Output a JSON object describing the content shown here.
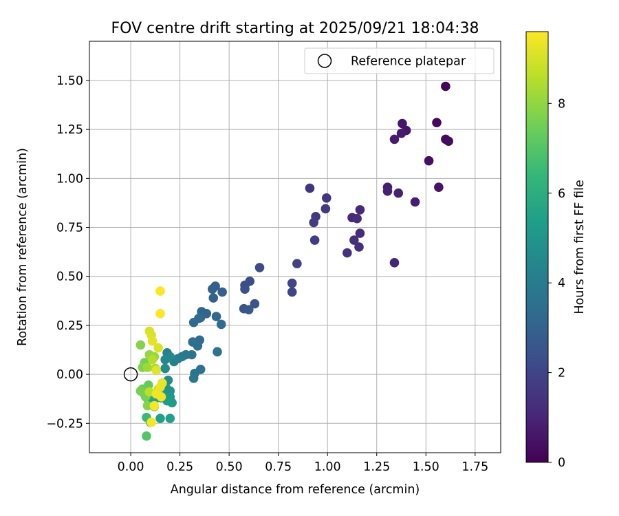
{
  "chart_data": {
    "type": "scatter",
    "title": "FOV centre drift starting at 2025/09/21 18:04:38",
    "xlabel": "Angular distance from reference (arcmin)",
    "ylabel": "Rotation from reference (arcmin)",
    "xlim": [
      -0.21,
      1.88
    ],
    "ylim": [
      -0.4,
      1.7
    ],
    "grid": true,
    "x_ticks": [
      0.0,
      0.25,
      0.5,
      0.75,
      1.0,
      1.25,
      1.5,
      1.75
    ],
    "x_tick_labels": [
      "0.00",
      "0.25",
      "0.50",
      "0.75",
      "1.00",
      "1.25",
      "1.50",
      "1.75"
    ],
    "y_ticks": [
      -0.25,
      0.0,
      0.25,
      0.5,
      0.75,
      1.0,
      1.25,
      1.5
    ],
    "y_tick_labels": [
      "−0.25",
      "0.00",
      "0.25",
      "0.50",
      "0.75",
      "1.00",
      "1.25",
      "1.50"
    ],
    "legend": {
      "label": "Reference platepar",
      "placement": "top-right"
    },
    "reference_point": {
      "x": 0.0,
      "y": 0.0
    },
    "colorbar": {
      "label": "Hours from first FF file",
      "min": 0,
      "max": 9.6,
      "ticks": [
        0,
        2,
        4,
        6,
        8
      ],
      "tick_labels": [
        "0",
        "2",
        "4",
        "6",
        "8"
      ],
      "colormap": [
        "#440154",
        "#482878",
        "#3e4989",
        "#31688e",
        "#26828e",
        "#1f9e89",
        "#35b779",
        "#6ece58",
        "#b5de2b",
        "#fde725"
      ]
    },
    "series": [
      {
        "name": "FOV centre",
        "points": [
          {
            "x": 1.6,
            "y": 1.47,
            "h": 0.1
          },
          {
            "x": 1.555,
            "y": 1.285,
            "h": 0.2
          },
          {
            "x": 1.6,
            "y": 1.2,
            "h": 0.3
          },
          {
            "x": 1.615,
            "y": 1.19,
            "h": 0.3
          },
          {
            "x": 1.515,
            "y": 1.09,
            "h": 0.4
          },
          {
            "x": 1.565,
            "y": 0.955,
            "h": 0.5
          },
          {
            "x": 1.38,
            "y": 1.28,
            "h": 0.6
          },
          {
            "x": 1.4,
            "y": 1.245,
            "h": 0.6
          },
          {
            "x": 1.375,
            "y": 1.23,
            "h": 0.7
          },
          {
            "x": 1.34,
            "y": 1.2,
            "h": 0.7
          },
          {
            "x": 1.445,
            "y": 0.88,
            "h": 0.8
          },
          {
            "x": 1.305,
            "y": 0.955,
            "h": 0.8
          },
          {
            "x": 1.305,
            "y": 0.935,
            "h": 0.9
          },
          {
            "x": 1.36,
            "y": 0.925,
            "h": 0.9
          },
          {
            "x": 1.34,
            "y": 0.57,
            "h": 1.0
          },
          {
            "x": 1.165,
            "y": 0.84,
            "h": 1.1
          },
          {
            "x": 1.125,
            "y": 0.8,
            "h": 1.1
          },
          {
            "x": 1.15,
            "y": 0.795,
            "h": 1.2
          },
          {
            "x": 1.165,
            "y": 0.72,
            "h": 1.2
          },
          {
            "x": 1.135,
            "y": 0.685,
            "h": 1.3
          },
          {
            "x": 1.16,
            "y": 0.65,
            "h": 1.3
          },
          {
            "x": 1.1,
            "y": 0.62,
            "h": 1.4
          },
          {
            "x": 0.995,
            "y": 0.9,
            "h": 1.5
          },
          {
            "x": 0.91,
            "y": 0.95,
            "h": 1.5
          },
          {
            "x": 0.99,
            "y": 0.845,
            "h": 1.6
          },
          {
            "x": 0.94,
            "y": 0.805,
            "h": 1.6
          },
          {
            "x": 0.93,
            "y": 0.775,
            "h": 1.7
          },
          {
            "x": 0.935,
            "y": 0.685,
            "h": 1.7
          },
          {
            "x": 0.845,
            "y": 0.565,
            "h": 1.9
          },
          {
            "x": 0.82,
            "y": 0.465,
            "h": 2.0
          },
          {
            "x": 0.82,
            "y": 0.42,
            "h": 2.0
          },
          {
            "x": 0.655,
            "y": 0.545,
            "h": 2.2
          },
          {
            "x": 0.605,
            "y": 0.475,
            "h": 2.3
          },
          {
            "x": 0.58,
            "y": 0.455,
            "h": 2.3
          },
          {
            "x": 0.58,
            "y": 0.435,
            "h": 2.4
          },
          {
            "x": 0.63,
            "y": 0.36,
            "h": 2.5
          },
          {
            "x": 0.575,
            "y": 0.335,
            "h": 2.5
          },
          {
            "x": 0.6,
            "y": 0.33,
            "h": 2.6
          },
          {
            "x": 0.43,
            "y": 0.45,
            "h": 2.9
          },
          {
            "x": 0.465,
            "y": 0.42,
            "h": 2.9
          },
          {
            "x": 0.415,
            "y": 0.435,
            "h": 3.0
          },
          {
            "x": 0.42,
            "y": 0.39,
            "h": 3.0
          },
          {
            "x": 0.36,
            "y": 0.32,
            "h": 3.1
          },
          {
            "x": 0.385,
            "y": 0.31,
            "h": 3.1
          },
          {
            "x": 0.355,
            "y": 0.29,
            "h": 3.2
          },
          {
            "x": 0.435,
            "y": 0.295,
            "h": 3.2
          },
          {
            "x": 0.345,
            "y": 0.285,
            "h": 3.3
          },
          {
            "x": 0.32,
            "y": 0.265,
            "h": 3.3
          },
          {
            "x": 0.46,
            "y": 0.255,
            "h": 3.4
          },
          {
            "x": 0.35,
            "y": 0.175,
            "h": 3.4
          },
          {
            "x": 0.315,
            "y": 0.165,
            "h": 3.5
          },
          {
            "x": 0.34,
            "y": 0.145,
            "h": 3.5
          },
          {
            "x": 0.44,
            "y": 0.115,
            "h": 3.6
          },
          {
            "x": 0.31,
            "y": 0.1,
            "h": 3.7
          },
          {
            "x": 0.28,
            "y": 0.1,
            "h": 3.8
          },
          {
            "x": 0.26,
            "y": 0.09,
            "h": 3.9
          },
          {
            "x": 0.24,
            "y": 0.08,
            "h": 4.0
          },
          {
            "x": 0.22,
            "y": 0.065,
            "h": 4.2
          },
          {
            "x": 0.185,
            "y": 0.11,
            "h": 4.3
          },
          {
            "x": 0.2,
            "y": 0.09,
            "h": 4.4
          },
          {
            "x": 0.175,
            "y": 0.075,
            "h": 4.5
          },
          {
            "x": 0.175,
            "y": 0.03,
            "h": 4.6
          },
          {
            "x": 0.355,
            "y": 0.025,
            "h": 3.6
          },
          {
            "x": 0.325,
            "y": 0.005,
            "h": 3.7
          },
          {
            "x": 0.32,
            "y": -0.02,
            "h": 3.8
          },
          {
            "x": 0.19,
            "y": -0.03,
            "h": 4.7
          },
          {
            "x": 0.16,
            "y": -0.045,
            "h": 4.8
          },
          {
            "x": 0.18,
            "y": -0.07,
            "h": 4.8
          },
          {
            "x": 0.2,
            "y": -0.085,
            "h": 4.9
          },
          {
            "x": 0.14,
            "y": -0.095,
            "h": 5.0
          },
          {
            "x": 0.18,
            "y": -0.105,
            "h": 5.0
          },
          {
            "x": 0.2,
            "y": -0.115,
            "h": 5.1
          },
          {
            "x": 0.185,
            "y": -0.135,
            "h": 5.2
          },
          {
            "x": 0.21,
            "y": -0.145,
            "h": 5.2
          },
          {
            "x": 0.155,
            "y": -0.12,
            "h": 5.3
          },
          {
            "x": 0.15,
            "y": -0.225,
            "h": 5.4
          },
          {
            "x": 0.2,
            "y": -0.225,
            "h": 5.4
          },
          {
            "x": 0.13,
            "y": -0.11,
            "h": 5.5
          },
          {
            "x": 0.12,
            "y": -0.13,
            "h": 5.6
          },
          {
            "x": 0.09,
            "y": -0.13,
            "h": 5.8
          },
          {
            "x": 0.08,
            "y": -0.22,
            "h": 6.5
          },
          {
            "x": 0.1,
            "y": -0.245,
            "h": 6.6
          },
          {
            "x": 0.08,
            "y": -0.315,
            "h": 7.0
          },
          {
            "x": 0.065,
            "y": -0.095,
            "h": 7.2
          },
          {
            "x": 0.09,
            "y": -0.055,
            "h": 7.3
          },
          {
            "x": 0.06,
            "y": -0.075,
            "h": 7.4
          },
          {
            "x": 0.05,
            "y": -0.085,
            "h": 7.6
          },
          {
            "x": 0.075,
            "y": -0.115,
            "h": 7.6
          },
          {
            "x": 0.085,
            "y": -0.16,
            "h": 7.8
          },
          {
            "x": 0.12,
            "y": -0.165,
            "h": 7.9
          },
          {
            "x": 0.07,
            "y": 0.06,
            "h": 7.5
          },
          {
            "x": 0.06,
            "y": 0.035,
            "h": 7.7
          },
          {
            "x": 0.05,
            "y": 0.15,
            "h": 7.8
          },
          {
            "x": 0.095,
            "y": 0.1,
            "h": 8.0
          },
          {
            "x": 0.12,
            "y": 0.09,
            "h": 8.1
          },
          {
            "x": 0.085,
            "y": 0.035,
            "h": 8.2
          },
          {
            "x": 0.125,
            "y": 0.03,
            "h": 8.4
          },
          {
            "x": 0.11,
            "y": 0.075,
            "h": 8.5
          },
          {
            "x": 0.095,
            "y": -0.09,
            "h": 8.6
          },
          {
            "x": 0.14,
            "y": -0.075,
            "h": 8.8
          },
          {
            "x": 0.095,
            "y": 0.22,
            "h": 9.0
          },
          {
            "x": 0.14,
            "y": 0.135,
            "h": 9.1
          },
          {
            "x": 0.105,
            "y": 0.2,
            "h": 9.1
          },
          {
            "x": 0.11,
            "y": 0.17,
            "h": 9.2
          },
          {
            "x": 0.13,
            "y": 0.02,
            "h": 9.2
          },
          {
            "x": 0.16,
            "y": -0.045,
            "h": 9.3
          },
          {
            "x": 0.15,
            "y": -0.065,
            "h": 9.3
          },
          {
            "x": 0.13,
            "y": -0.1,
            "h": 9.4
          },
          {
            "x": 0.155,
            "y": -0.115,
            "h": 9.4
          },
          {
            "x": 0.12,
            "y": -0.16,
            "h": 9.5
          },
          {
            "x": 0.105,
            "y": -0.245,
            "h": 9.5
          },
          {
            "x": 0.15,
            "y": 0.425,
            "h": 9.6
          },
          {
            "x": 0.15,
            "y": 0.31,
            "h": 9.6
          }
        ]
      }
    ]
  }
}
